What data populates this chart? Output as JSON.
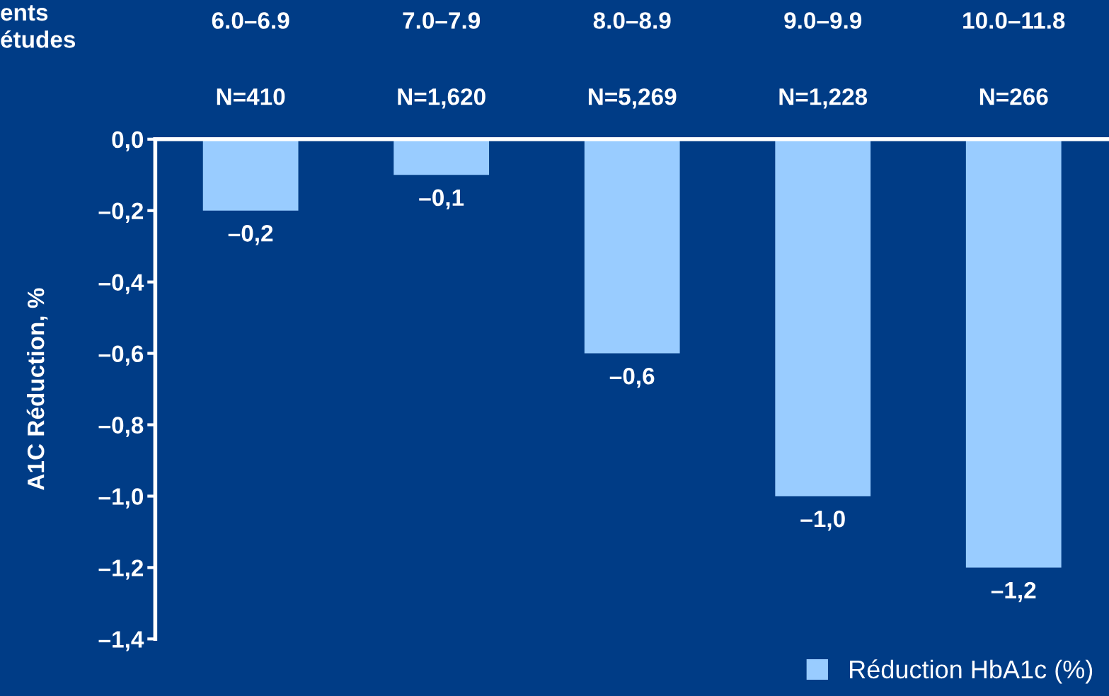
{
  "chart_data": {
    "type": "bar",
    "ylabel": "A1C Réduction, %",
    "categories": [
      "6.0–6.9\n\n\nN=410",
      "7.0–7.9\n\n\nN=1,620",
      "8.0–8.9\n\n\nN=5,269",
      "9.0–9.9\n\n\nN=1,228",
      "10.0–11.8\n\n\nN=266"
    ],
    "series": [
      {
        "name": "Réduction HbA1c (%)",
        "color": "#99ccff",
        "values": [
          -0.2,
          -0.1,
          -0.6,
          -1.0,
          -1.2
        ],
        "value_labels": [
          "–0,2",
          "–0,1",
          "–0,6",
          "–1,0",
          "–1,2"
        ]
      }
    ],
    "ylim": [
      -1.4,
      0
    ],
    "yticks": [
      {
        "value": 0,
        "label": "0,0"
      },
      {
        "value": -0.2,
        "label": "–0,2"
      },
      {
        "value": -0.4,
        "label": "–0,4"
      },
      {
        "value": -0.6,
        "label": "–0,6"
      },
      {
        "value": -0.8,
        "label": "–0,8"
      },
      {
        "value": -1.0,
        "label": "–1,0"
      },
      {
        "value": -1.2,
        "label": "–1,2"
      },
      {
        "value": -1.4,
        "label": "–1,4"
      }
    ],
    "annotations": [
      "ents\nétudes"
    ],
    "legend": "bottom right",
    "grid": false
  }
}
